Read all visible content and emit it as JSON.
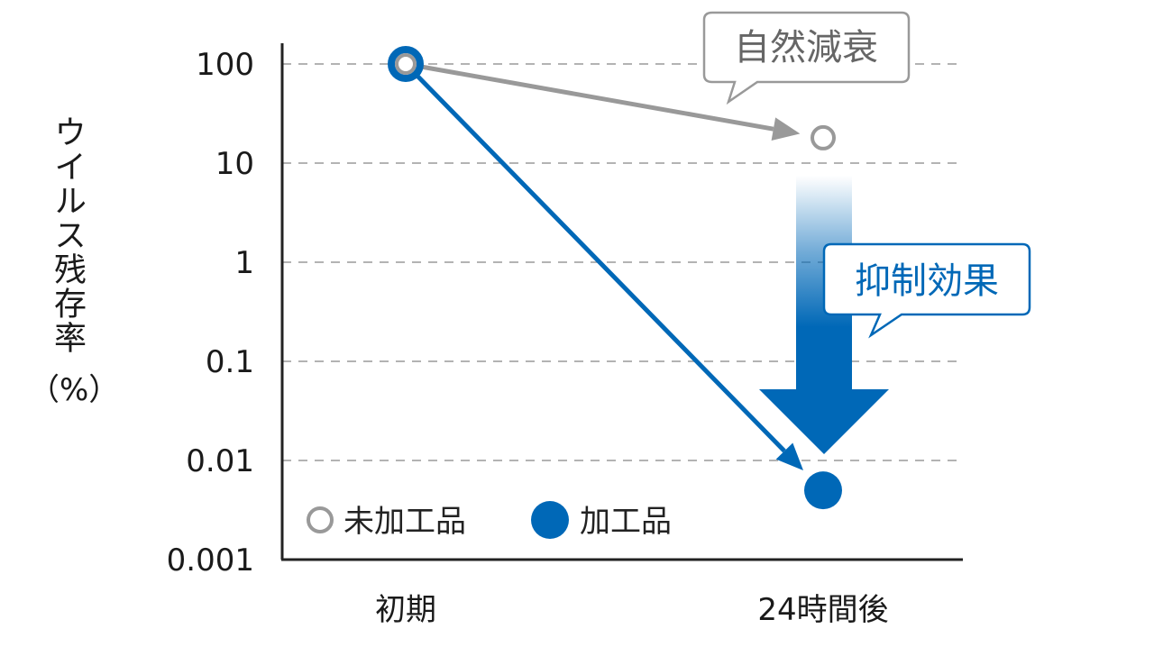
{
  "chart_data": {
    "type": "line",
    "ylabel": "ウイルス残存率",
    "ylabel_unit": "（%）",
    "y_scale": "log",
    "ylim": [
      0.001,
      100
    ],
    "y_ticks": [
      "100",
      "10",
      "1",
      "0.1",
      "0.01",
      "0.001"
    ],
    "y_tick_values": [
      100,
      10,
      1,
      0.1,
      0.01,
      0.001
    ],
    "categories": [
      "初期",
      "24時間後"
    ],
    "grid": "dashed horizontal",
    "legend_position": "bottom-left",
    "series": [
      {
        "name": "未加工品",
        "values": [
          100,
          18
        ],
        "marker": "open-circle",
        "color": "#999999"
      },
      {
        "name": "加工品",
        "values": [
          100,
          0.005
        ],
        "marker": "filled-circle",
        "color": "#0068b7"
      }
    ],
    "annotations": {
      "natural_decay": "自然減衰",
      "suppression_effect": "抑制効果"
    }
  },
  "colors": {
    "untreated": "#999999",
    "treated": "#0068b7",
    "axis": "#222222",
    "grid": "#9a9a9a"
  }
}
